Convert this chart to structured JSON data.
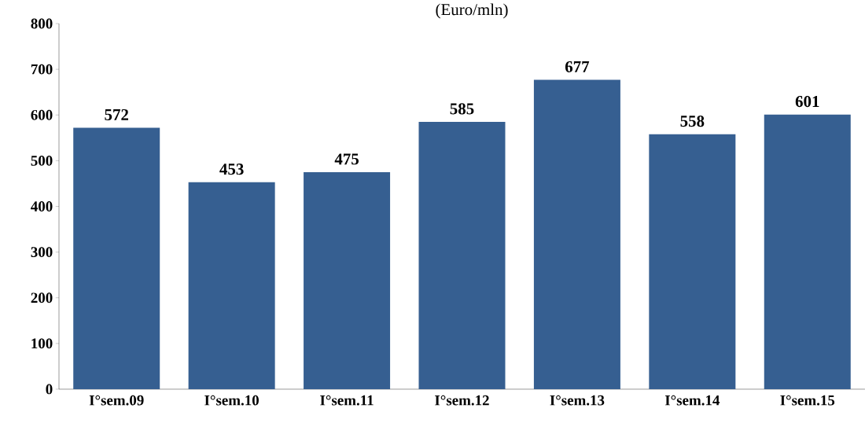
{
  "chart_data": {
    "type": "bar",
    "title": "(Euro/mln)",
    "categories": [
      "I°sem.09",
      "I°sem.10",
      "I°sem.11",
      "I°sem.12",
      "I°sem.13",
      "I°sem.14",
      "I°sem.15"
    ],
    "values": [
      572,
      453,
      475,
      585,
      677,
      558,
      601
    ],
    "color": "#365f91",
    "data_labels": true,
    "grid": false,
    "ylim": [
      0,
      800
    ],
    "yticks": [
      0,
      100,
      200,
      300,
      400,
      500,
      600,
      700,
      800
    ]
  }
}
